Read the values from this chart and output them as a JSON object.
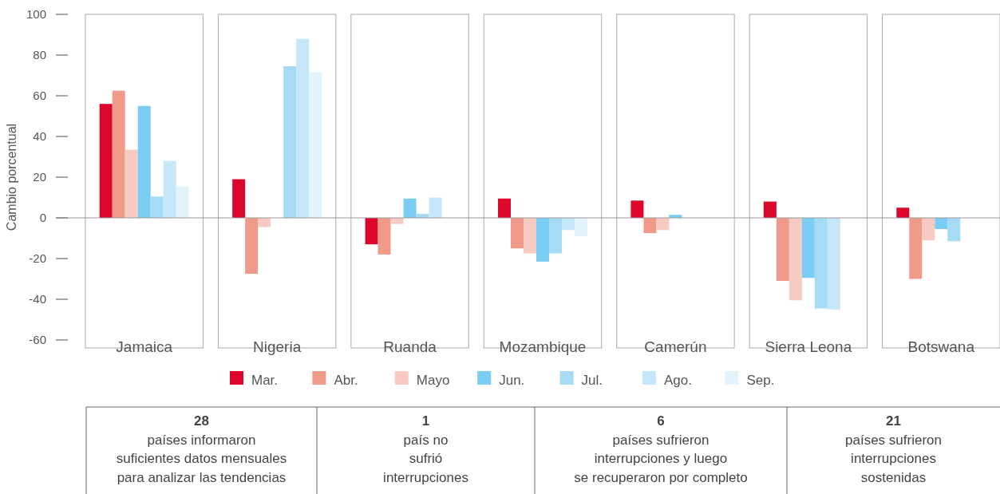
{
  "chart_data": {
    "type": "bar",
    "ylabel": "Cambio porcentual",
    "categories": [
      "Jamaica",
      "Nigeria",
      "Ruanda",
      "Mozambique",
      "Camerún",
      "Sierra Leona",
      "Botswana"
    ],
    "series": [
      {
        "name": "Mar.",
        "color": "#dc052c",
        "values": [
          56,
          19,
          -13,
          9.5,
          8.5,
          8,
          5
        ]
      },
      {
        "name": "Abr.",
        "color": "#f09a8a",
        "values": [
          62.5,
          -27.5,
          -18,
          -15,
          -7.5,
          -31,
          -30
        ]
      },
      {
        "name": "Mayo",
        "color": "#f7cbc2",
        "values": [
          33.5,
          -4.5,
          -3,
          -17.5,
          -6,
          -40.5,
          -11
        ]
      },
      {
        "name": "Jun.",
        "color": "#7bcdf3",
        "values": [
          55,
          null,
          9.5,
          -21.5,
          1.5,
          -29.5,
          -5.5
        ]
      },
      {
        "name": "Jul.",
        "color": "#a6dbf6",
        "values": [
          10.5,
          74.5,
          2,
          -17.5,
          null,
          -44.5,
          -11.5
        ]
      },
      {
        "name": "Ago.",
        "color": "#c6e6f9",
        "values": [
          28,
          88,
          10,
          -6,
          null,
          -45,
          null
        ]
      },
      {
        "name": "Sep.",
        "color": "#e3f3fc",
        "values": [
          15.5,
          71.5,
          null,
          -9,
          null,
          null,
          null
        ]
      }
    ],
    "ylim": [
      -60,
      100
    ],
    "yticks": [
      -60,
      -40,
      -20,
      0,
      20,
      40,
      60,
      80,
      100
    ],
    "legend": "bottom",
    "annotations": [
      "28\npaíses informaron\nsuficientes datos mensuales\npara analizar las tendencias",
      "1\npaís no\nsufrió\ninterrupciones",
      "6\npaíses sufrieron\ninterrupciones y luego\nse recuperaron por completo",
      "21\npaíses sufrieron\ninterrupciones\nsostenidas"
    ]
  }
}
